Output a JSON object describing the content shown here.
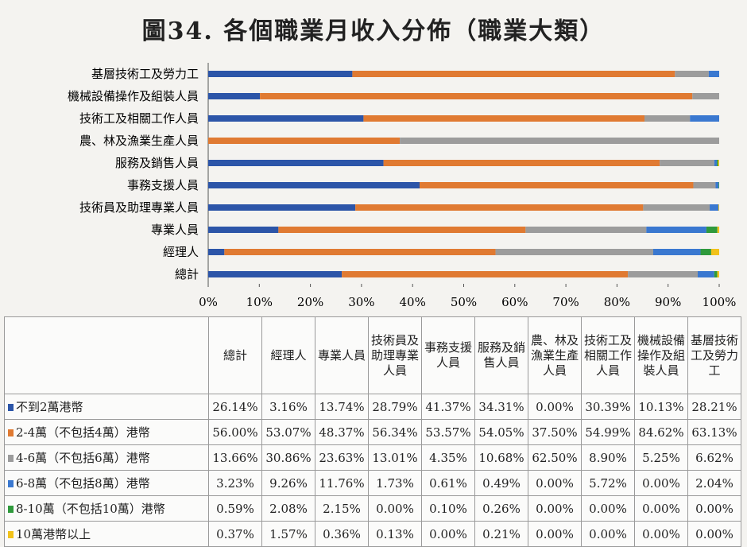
{
  "chart_data": {
    "type": "bar",
    "orientation": "horizontal-stacked",
    "title": "圖34. 各個職業月收入分佈（職業大類）",
    "xlim": [
      0,
      100
    ],
    "xticks": [
      "0%",
      "10%",
      "20%",
      "30%",
      "40%",
      "50%",
      "60%",
      "70%",
      "80%",
      "90%",
      "100%"
    ],
    "categories": [
      "總計",
      "經理人",
      "專業人員",
      "技術員及助理專業人員",
      "事務支援人員",
      "服務及銷售人員",
      "農、林及漁業生產人員",
      "技術工及相關工作人員",
      "機械設備操作及組裝人員",
      "基層技術工及勞力工"
    ],
    "axis_labels": [
      "總計",
      "經理人",
      "專業人員",
      "技術員及助理專業人員",
      "事務支援人員",
      "服務及銷售人員",
      "農、林及漁業生產人員",
      "技術工及相關工作人員",
      "機械設備操作及組裝人員",
      "基層技術工及勞力工"
    ],
    "table_headers": [
      "總計",
      "經理人",
      "專業人員",
      "技術員及助理專業人員",
      "事務支援人員",
      "服務及銷售人員",
      "農、林及漁業生產人員",
      "技術工及相關工作人員",
      "機械設備操作及組裝人員",
      "基層技術工及勞力工"
    ],
    "series": [
      {
        "name": "不到2萬港幣",
        "color": "#2c55a8",
        "values": [
          26.14,
          3.16,
          13.74,
          28.79,
          41.37,
          34.31,
          0.0,
          30.39,
          10.13,
          28.21
        ],
        "labels": [
          "26.14%",
          "3.16%",
          "13.74%",
          "28.79%",
          "41.37%",
          "34.31%",
          "0.00%",
          "30.39%",
          "10.13%",
          "28.21%"
        ]
      },
      {
        "name": "2-4萬（不包括4萬）港幣",
        "color": "#e07a32",
        "values": [
          56.0,
          53.07,
          48.37,
          56.34,
          53.57,
          54.05,
          37.5,
          54.99,
          84.62,
          63.13
        ],
        "labels": [
          "56.00%",
          "53.07%",
          "48.37%",
          "56.34%",
          "53.57%",
          "54.05%",
          "37.50%",
          "54.99%",
          "84.62%",
          "63.13%"
        ]
      },
      {
        "name": "4-6萬（不包括6萬）港幣",
        "color": "#9c9c9c",
        "values": [
          13.66,
          30.86,
          23.63,
          13.01,
          4.35,
          10.68,
          62.5,
          8.9,
          5.25,
          6.62
        ],
        "labels": [
          "13.66%",
          "30.86%",
          "23.63%",
          "13.01%",
          "4.35%",
          "10.68%",
          "62.50%",
          "8.90%",
          "5.25%",
          "6.62%"
        ]
      },
      {
        "name": "6-8萬（不包括8萬）港幣",
        "color": "#3a78d0",
        "values": [
          3.23,
          9.26,
          11.76,
          1.73,
          0.61,
          0.49,
          0.0,
          5.72,
          0.0,
          2.04
        ],
        "labels": [
          "3.23%",
          "9.26%",
          "11.76%",
          "1.73%",
          "0.61%",
          "0.49%",
          "0.00%",
          "5.72%",
          "0.00%",
          "2.04%"
        ]
      },
      {
        "name": "8-10萬（不包括10萬）港幣",
        "color": "#2f9a3c",
        "values": [
          0.59,
          2.08,
          2.15,
          0.0,
          0.1,
          0.26,
          0.0,
          0.0,
          0.0,
          0.0
        ],
        "labels": [
          "0.59%",
          "2.08%",
          "2.15%",
          "0.00%",
          "0.10%",
          "0.26%",
          "0.00%",
          "0.00%",
          "0.00%",
          "0.00%"
        ]
      },
      {
        "name": "10萬港幣以上",
        "color": "#f2c21a",
        "values": [
          0.37,
          1.57,
          0.36,
          0.13,
          0.0,
          0.21,
          0.0,
          0.0,
          0.0,
          0.0
        ],
        "labels": [
          "0.37%",
          "1.57%",
          "0.36%",
          "0.13%",
          "0.00%",
          "0.21%",
          "0.00%",
          "0.00%",
          "0.00%",
          "0.00%"
        ]
      }
    ]
  }
}
